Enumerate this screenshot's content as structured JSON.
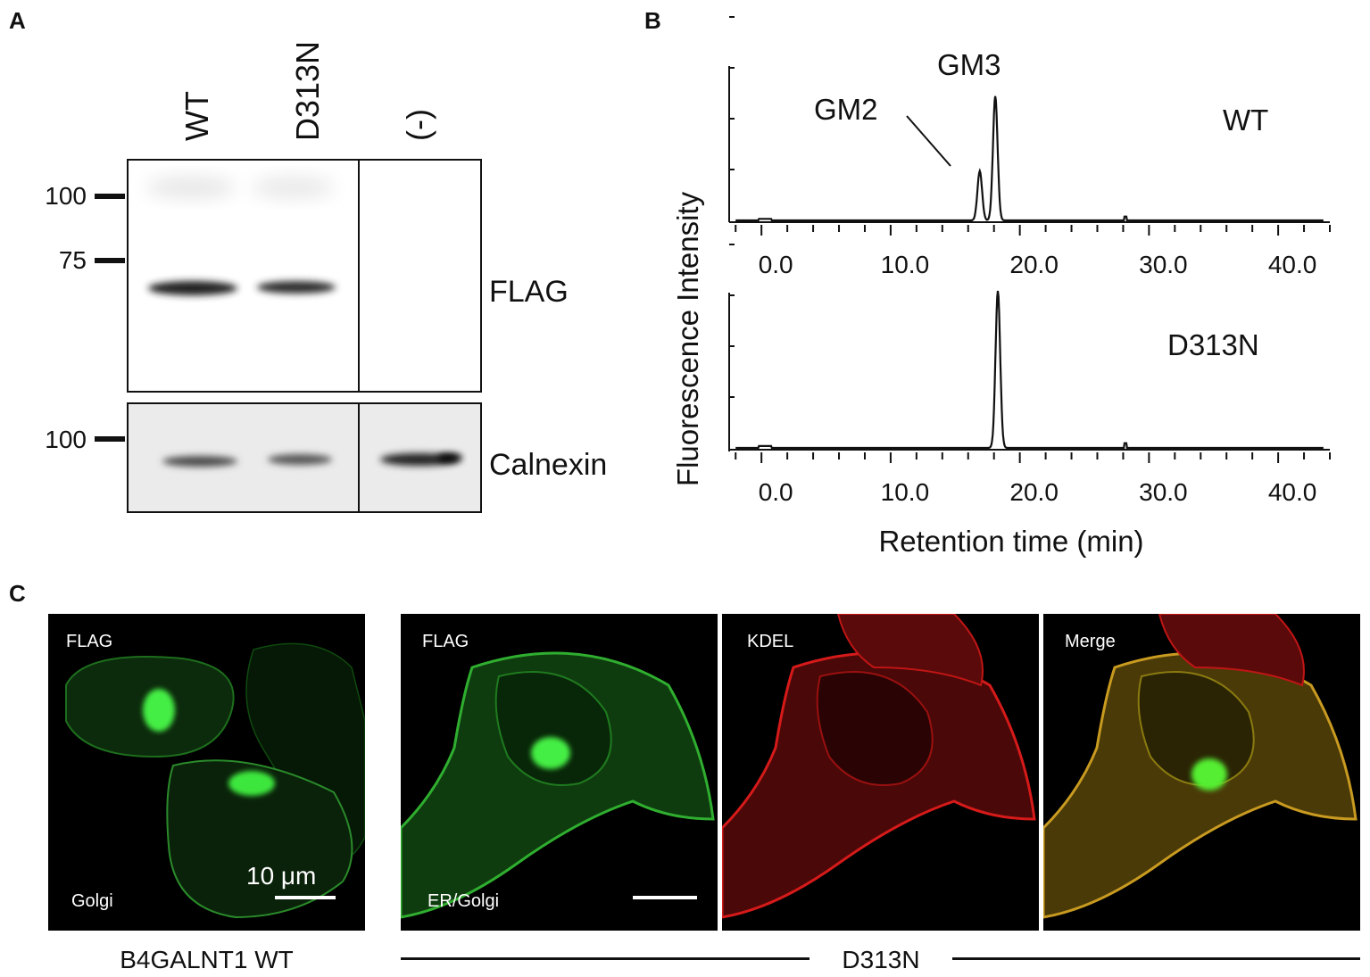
{
  "panel_labels": {
    "a": "A",
    "b": "B",
    "c": "C"
  },
  "panel_a": {
    "lanes": [
      "WT",
      "D313N",
      "(-)"
    ],
    "mw_markers_top": [
      "100",
      "75"
    ],
    "mw_markers_bottom": [
      "100"
    ],
    "blot_labels": {
      "top": "FLAG",
      "bottom": "Calnexin"
    }
  },
  "panel_b": {
    "ylabel": "Fluorescence  Intensity",
    "xlabel": "Retention time (min)",
    "peak_labels": {
      "gm2": "GM2",
      "gm3": "GM3"
    },
    "trace_labels": {
      "wt": "WT",
      "mutant": "D313N"
    }
  },
  "chart_data": [
    {
      "type": "line",
      "name": "WT",
      "xlabel": "Retention time (min)",
      "ylabel": "Fluorescence  Intensity",
      "xlim": [
        -2.5,
        44
      ],
      "x_ticks": [
        "0.0",
        "10.0",
        "20.0",
        "30.0",
        "40.0"
      ],
      "ylim": [
        0,
        1
      ],
      "grid": false,
      "annotations": [
        "GM2",
        "GM3"
      ],
      "peaks": [
        {
          "label": "GM2",
          "x": 16.9,
          "y": 0.39
        },
        {
          "label": "GM3",
          "x": 18.1,
          "y": 0.98
        }
      ]
    },
    {
      "type": "line",
      "name": "D313N",
      "xlabel": "Retention time (min)",
      "ylabel": "Fluorescence  Intensity",
      "xlim": [
        -2.5,
        44
      ],
      "x_ticks": [
        "0.0",
        "10.0",
        "20.0",
        "30.0",
        "40.0"
      ],
      "ylim": [
        0,
        1
      ],
      "grid": false,
      "peaks": [
        {
          "x": 18.3,
          "y": 1.0
        }
      ]
    }
  ],
  "panel_c": {
    "images": [
      {
        "top": "FLAG",
        "bottom": "Golgi",
        "scale": "10 μm"
      },
      {
        "top": "FLAG",
        "bottom": "ER/Golgi"
      },
      {
        "top": "KDEL"
      },
      {
        "top": "Merge"
      }
    ],
    "caption_left": "B4GALNT1 WT",
    "caption_right": "D313N"
  },
  "colors": {
    "flag": "#22cc22",
    "kdel": "#ee1a1a",
    "merge": "#c9a020"
  }
}
